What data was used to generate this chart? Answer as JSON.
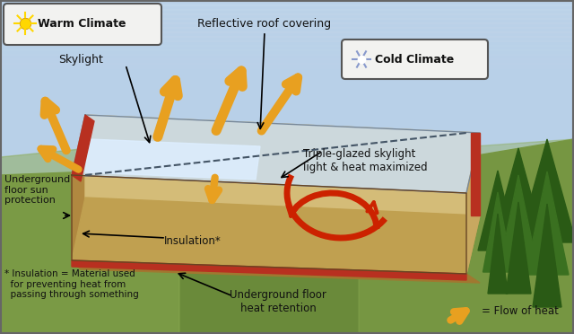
{
  "sky_color": "#b8d0e8",
  "grass_color_dark": "#6a8a3a",
  "grass_color_light": "#8aaa50",
  "roof_color": "#ccdce8",
  "roof_edge_color": "#8899aa",
  "wall_front_color": "#c8a055",
  "wall_right_color": "#b08840",
  "wall_interior_color": "#c8a860",
  "floor_color": "#b89040",
  "insulation_color": "#b83020",
  "skylight_color": "#ddeeff",
  "orange_color": "#e8a020",
  "red_color": "#cc2200",
  "label_bg": "#f2f2f0",
  "label_edge": "#555555",
  "warm_climate_text": "Warm Climate",
  "cold_climate_text": "Cold Climate",
  "skylight_text": "Skylight",
  "reflective_roof_text": "Reflective roof covering",
  "triple_glazed_text": "Triple-glazed skylight\nlight & heat maximized",
  "underground_sun_text": "Underground\nfloor sun\nprotection",
  "insulation_text": "Insulation*",
  "underground_heat_text": "Underground floor\nheat retention",
  "flow_heat_text": "= Flow of heat",
  "footnote_text": "* Insulation = Material used\n  for preventing heat from\n  passing through something",
  "sun_color": "#FFD700",
  "snowflake_color": "#8899cc"
}
